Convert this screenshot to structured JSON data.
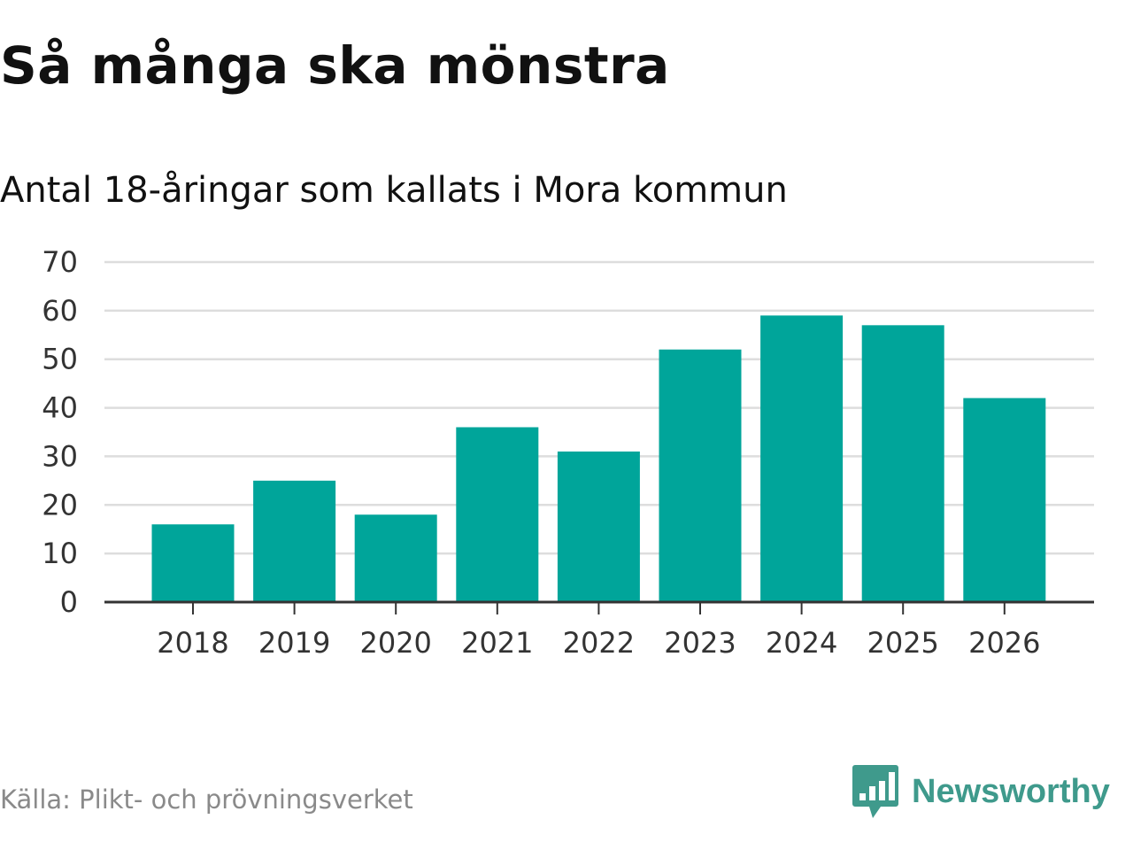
{
  "title": "Så många ska mönstra",
  "subtitle": "Antal 18-åringar som kallats i Mora kommun",
  "source": "Källa: Plikt- och prövningsverket",
  "brand": {
    "name": "Newsworthy",
    "icon": "newsworthy-logo-icon",
    "color": "#3f9a8c"
  },
  "colors": {
    "bar": "#00a59a",
    "grid": "#dddddd",
    "axis": "#333333"
  },
  "chart_data": {
    "type": "bar",
    "title": "Så många ska mönstra",
    "subtitle": "Antal 18-åringar som kallats i Mora kommun",
    "xlabel": "",
    "ylabel": "",
    "categories": [
      "2018",
      "2019",
      "2020",
      "2021",
      "2022",
      "2023",
      "2024",
      "2025",
      "2026"
    ],
    "values": [
      16,
      25,
      18,
      36,
      31,
      52,
      59,
      57,
      42
    ],
    "ylim": [
      0,
      70
    ],
    "yticks": [
      0,
      10,
      20,
      30,
      40,
      50,
      60,
      70
    ],
    "grid": true,
    "legend": "none"
  }
}
